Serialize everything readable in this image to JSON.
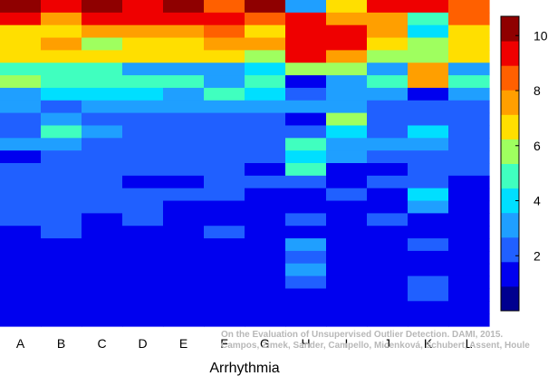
{
  "chart_data": {
    "type": "heatmap",
    "title": "",
    "xlabel": "Arrhythmia",
    "ylabel": "",
    "categories": [
      "A",
      "B",
      "C",
      "D",
      "E",
      "F",
      "G",
      "H",
      "I",
      "J",
      "K",
      "L"
    ],
    "row_count": 26,
    "grid": false,
    "colorbar": {
      "position": "right",
      "range": [
        0,
        10.7
      ],
      "ticks": [
        2,
        4,
        6,
        8,
        10
      ],
      "tick_labels": [
        "2",
        "4",
        "6",
        "8",
        "10"
      ],
      "colormap": [
        "#00008f",
        "#0000ef",
        "#2060ff",
        "#1f9fff",
        "#00dfff",
        "#40ffbf",
        "#9fff5f",
        "#ffdf00",
        "#ff9f00",
        "#ff6000",
        "#ef0000",
        "#8f0000"
      ]
    },
    "columns": [
      {
        "name": "A",
        "values": [
          10.3,
          9.5,
          7.0,
          7.0,
          7.0,
          5.0,
          6.0,
          3.0,
          3.0,
          2.0,
          2.0,
          3.0,
          1.0,
          2.0,
          2.0,
          2.0,
          2.0,
          2.0,
          1.0,
          1.0,
          1.0,
          1.0,
          1.0,
          1.0,
          1.0,
          1.0
        ]
      },
      {
        "name": "B",
        "values": [
          9.5,
          8.0,
          7.0,
          8.0,
          7.0,
          5.0,
          5.0,
          4.0,
          2.0,
          3.0,
          4.5,
          3.0,
          2.0,
          2.0,
          2.0,
          2.0,
          2.0,
          2.0,
          2.0,
          1.0,
          1.0,
          1.0,
          1.0,
          1.0,
          1.0,
          1.0
        ]
      },
      {
        "name": "C",
        "values": [
          10.3,
          9.5,
          8.0,
          6.0,
          7.0,
          4.5,
          5.0,
          4.0,
          3.0,
          2.0,
          3.0,
          2.0,
          2.0,
          2.0,
          2.0,
          2.0,
          2.0,
          1.0,
          1.0,
          1.0,
          1.0,
          1.0,
          1.0,
          1.0,
          1.0,
          1.0
        ]
      },
      {
        "name": "D",
        "values": [
          9.5,
          9.5,
          8.0,
          7.0,
          7.0,
          3.0,
          4.5,
          4.0,
          3.0,
          2.0,
          2.0,
          2.0,
          2.0,
          2.0,
          1.0,
          2.0,
          2.0,
          2.0,
          1.0,
          1.0,
          1.0,
          1.0,
          1.0,
          1.0,
          1.0,
          1.0
        ]
      },
      {
        "name": "E",
        "values": [
          10.7,
          9.5,
          8.0,
          7.0,
          7.0,
          3.0,
          4.5,
          3.0,
          3.0,
          2.0,
          2.0,
          2.0,
          2.0,
          2.0,
          1.0,
          2.0,
          1.0,
          1.0,
          1.0,
          1.0,
          1.0,
          1.0,
          1.0,
          1.0,
          1.0,
          1.0
        ]
      },
      {
        "name": "F",
        "values": [
          8.5,
          9.5,
          8.5,
          8.0,
          7.0,
          3.0,
          3.0,
          5.0,
          3.0,
          2.0,
          2.0,
          2.0,
          2.0,
          2.0,
          2.0,
          2.0,
          1.0,
          1.0,
          2.0,
          1.0,
          1.0,
          1.0,
          1.0,
          1.0,
          1.0,
          1.0
        ]
      },
      {
        "name": "G",
        "values": [
          10.3,
          8.5,
          7.0,
          8.0,
          6.0,
          4.0,
          5.0,
          4.0,
          3.0,
          2.0,
          2.0,
          2.0,
          2.0,
          1.0,
          2.0,
          1.0,
          1.0,
          1.0,
          1.0,
          1.0,
          1.0,
          1.0,
          1.0,
          1.0,
          1.0,
          1.0
        ]
      },
      {
        "name": "H",
        "values": [
          3.0,
          9.5,
          9.5,
          9.5,
          9.5,
          6.0,
          1.0,
          2.0,
          3.0,
          1.0,
          2.0,
          5.0,
          4.0,
          5.0,
          2.0,
          1.0,
          1.0,
          2.0,
          1.0,
          3.0,
          2.0,
          3.0,
          2.0,
          1.0,
          1.0,
          1.0
        ]
      },
      {
        "name": "I",
        "values": [
          7.0,
          8.0,
          9.0,
          9.5,
          8.0,
          6.0,
          3.0,
          3.0,
          3.0,
          6.0,
          4.0,
          3.0,
          3.0,
          1.0,
          1.0,
          2.0,
          1.0,
          1.0,
          1.0,
          1.0,
          1.0,
          1.0,
          1.0,
          1.0,
          1.0,
          1.0
        ]
      },
      {
        "name": "J",
        "values": [
          9.5,
          8.0,
          8.0,
          7.0,
          6.0,
          3.0,
          5.0,
          3.0,
          2.0,
          2.0,
          2.0,
          3.0,
          2.0,
          1.0,
          2.0,
          1.0,
          1.0,
          2.0,
          1.0,
          1.0,
          1.0,
          1.0,
          1.0,
          1.0,
          1.0,
          1.0
        ]
      },
      {
        "name": "K",
        "values": [
          9.5,
          5.0,
          4.0,
          6.0,
          6.0,
          8.0,
          8.0,
          1.0,
          2.0,
          2.0,
          4.0,
          3.0,
          2.0,
          2.0,
          2.0,
          4.0,
          3.0,
          1.0,
          1.0,
          2.0,
          1.0,
          1.0,
          2.0,
          2.0,
          1.0,
          1.0
        ]
      },
      {
        "name": "L",
        "values": [
          8.5,
          8.5,
          7.0,
          7.0,
          7.0,
          3.0,
          4.5,
          3.0,
          2.0,
          2.0,
          2.0,
          2.0,
          2.0,
          2.0,
          1.0,
          1.0,
          1.0,
          1.0,
          1.0,
          1.0,
          1.0,
          1.0,
          1.0,
          1.0,
          1.0,
          1.0
        ]
      }
    ]
  },
  "watermark": {
    "line1": "On the Evaluation of Unsupervised Outlier Detection. DAMI, 2015.",
    "line2": "Campos, Zimek, Sander, Campello, Micenková, Schubert, Assent, Houle"
  }
}
